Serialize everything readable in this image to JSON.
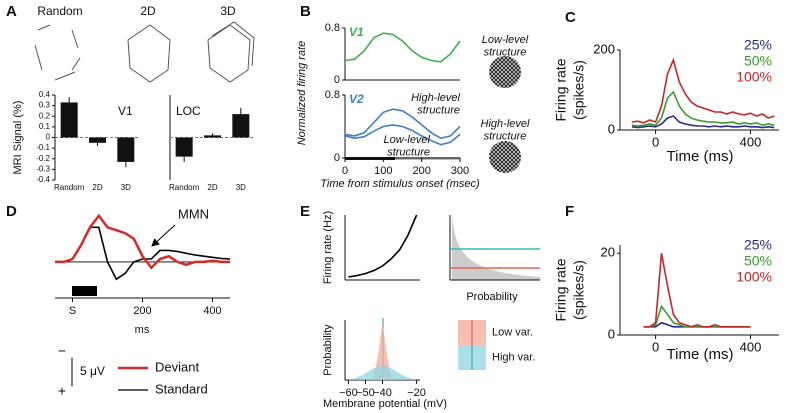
{
  "panel_labels": [
    "A",
    "B",
    "C",
    "D",
    "E",
    "F"
  ],
  "panel_a_stimuli": [
    "Random",
    "2D",
    "3D"
  ],
  "panel_b_images": [
    "Low-level structure",
    "High-level structure"
  ],
  "chart_data": [
    {
      "type": "bar",
      "title": "V1",
      "categories": [
        "Random",
        "2D",
        "3D"
      ],
      "values": [
        0.33,
        -0.05,
        -0.23
      ],
      "errors": [
        0.05,
        0.03,
        0.05
      ],
      "color": "#111111",
      "y_label": "MRI Signal (%)",
      "ylim": [
        -0.4,
        0.4
      ],
      "yticks": [
        -0.4,
        -0.3,
        -0.2,
        -0.1,
        0,
        0.1,
        0.2,
        0.3,
        0.4
      ]
    },
    {
      "type": "bar",
      "title": "LOC",
      "categories": [
        "Random",
        "2D",
        "3D"
      ],
      "values": [
        -0.18,
        0.02,
        0.22
      ],
      "errors": [
        0.05,
        0.02,
        0.06
      ],
      "color": "#111111",
      "ylim": [
        -0.4,
        0.4
      ]
    },
    {
      "type": "line",
      "title": "V1",
      "x": [
        0,
        25,
        50,
        75,
        100,
        125,
        150,
        175,
        200,
        225,
        250,
        275,
        300
      ],
      "series": [
        {
          "color": "#3cb44b",
          "values": [
            0.3,
            0.32,
            0.45,
            0.65,
            0.72,
            0.7,
            0.6,
            0.45,
            0.35,
            0.3,
            0.28,
            0.4,
            0.6
          ]
        }
      ],
      "xlim": [
        0,
        300
      ],
      "ylim": [
        0,
        0.8
      ],
      "yticks": [
        0,
        0.8
      ]
    },
    {
      "type": "line",
      "title": "V2",
      "x": [
        0,
        25,
        50,
        75,
        100,
        125,
        150,
        175,
        200,
        225,
        250,
        275,
        300
      ],
      "series": [
        {
          "name": "High-level structure",
          "color": "#3f7fc4",
          "values": [
            0.3,
            0.28,
            0.32,
            0.45,
            0.58,
            0.62,
            0.6,
            0.52,
            0.42,
            0.32,
            0.25,
            0.28,
            0.4
          ]
        },
        {
          "name": "Low-level structure",
          "color": "#3f7fc4",
          "values": [
            0.28,
            0.25,
            0.27,
            0.34,
            0.4,
            0.42,
            0.4,
            0.35,
            0.28,
            0.22,
            0.17,
            0.2,
            0.3
          ]
        }
      ],
      "xlim": [
        0,
        300
      ],
      "ylim": [
        0,
        0.8
      ],
      "yticks": [
        0,
        0.8
      ],
      "xticks": [
        0,
        100,
        200,
        300
      ],
      "x_label": "Time from stimulus onset (msec)",
      "y_label": "Normalized firing rate"
    },
    {
      "type": "line",
      "x": [
        -100,
        -75,
        -50,
        -25,
        0,
        25,
        50,
        75,
        100,
        125,
        150,
        175,
        200,
        225,
        250,
        275,
        300,
        325,
        350,
        375,
        400,
        425,
        450,
        475,
        500
      ],
      "series": [
        {
          "name": "25%",
          "color": "#2b2b8f",
          "values": [
            8,
            6,
            8,
            10,
            8,
            15,
            30,
            35,
            20,
            15,
            12,
            10,
            10,
            8,
            10,
            8,
            10,
            8,
            8,
            10,
            8,
            8,
            6,
            8,
            6
          ]
        },
        {
          "name": "50%",
          "color": "#3a9c2e",
          "values": [
            12,
            10,
            12,
            15,
            12,
            30,
            80,
            95,
            60,
            40,
            30,
            25,
            22,
            20,
            20,
            18,
            18,
            20,
            15,
            18,
            15,
            18,
            12,
            15,
            12
          ]
        },
        {
          "name": "100%",
          "color": "#c0282d",
          "values": [
            20,
            22,
            18,
            25,
            20,
            60,
            140,
            175,
            120,
            90,
            70,
            60,
            55,
            50,
            45,
            45,
            40,
            45,
            40,
            38,
            42,
            35,
            40,
            30,
            35
          ]
        }
      ],
      "xlim": [
        -150,
        520
      ],
      "ylim": [
        0,
        200
      ],
      "xticks": [
        0,
        400
      ],
      "yticks": [
        0,
        200
      ],
      "x_label": "Time (ms)",
      "y_label": [
        "Firing rate",
        "(spikes/s)"
      ]
    },
    {
      "type": "line",
      "x": [
        -50,
        -25,
        0,
        25,
        50,
        75,
        100,
        125,
        150,
        175,
        200,
        225,
        250,
        275,
        300,
        325,
        350,
        375,
        400,
        425,
        450
      ],
      "series": [
        {
          "name": "Standard",
          "color": "#000000",
          "values": [
            0,
            0,
            0.5,
            3,
            6,
            6,
            0,
            -3,
            -2,
            0,
            0.5,
            0.5,
            2,
            2,
            1.8,
            1.5,
            1.2,
            1,
            0.8,
            0.6,
            0.5
          ]
        },
        {
          "name": "Deviant",
          "color": "#d62a2a",
          "values": [
            0,
            0,
            0.5,
            3,
            6,
            8,
            6,
            5.5,
            5,
            4,
            1,
            -1,
            0.5,
            1,
            0,
            -0.5,
            0,
            0,
            0.2,
            0,
            0
          ]
        }
      ],
      "xlim": [
        -50,
        450
      ],
      "ylim": [
        -4,
        9
      ],
      "xticks": [
        {
          "value": 0,
          "label": "S"
        },
        200,
        400
      ],
      "x_label": "ms",
      "annotation": "MMN",
      "scale_bar": {
        "value": 5,
        "label": "5 μV"
      },
      "polarity": [
        "−",
        "+"
      ]
    },
    {
      "type": "line",
      "x": [
        -60,
        -55,
        -50,
        -45,
        -40,
        -35,
        -30,
        -25,
        -20
      ],
      "series": [
        {
          "color": "#000000",
          "values": [
            0.3,
            0.44,
            0.65,
            0.95,
            1.4,
            2.1,
            3.0,
            4.5,
            6.5
          ]
        }
      ],
      "xlim": [
        -62,
        -18
      ],
      "ylim": [
        0,
        6.5
      ],
      "y_label": "Firing rate (Hz)"
    },
    {
      "type": "hline",
      "lines": [
        {
          "color": "#2bbfbf",
          "value": 3.1
        },
        {
          "color": "#e8605a",
          "value": 1.2
        }
      ],
      "ylim": [
        0,
        6.5
      ],
      "x_label": "Probability"
    },
    {
      "type": "area",
      "x": [
        -60,
        -57.5,
        -55,
        -52.5,
        -50,
        -47.5,
        -45,
        -42.5,
        -40,
        -37.5,
        -35,
        -32.5,
        -30,
        -27.5,
        -25,
        -22.5,
        -20
      ],
      "series": [
        {
          "name": "Low var.",
          "color": "#f4a99a",
          "values": [
            0,
            0,
            0,
            0,
            0,
            0,
            0.044,
            0.458,
            1,
            0.458,
            0.044,
            0,
            0,
            0,
            0,
            0,
            0
          ]
        },
        {
          "name": "High var.",
          "color": "#8fd6e0",
          "values": [
            0.011,
            0.023,
            0.043,
            0.074,
            0.115,
            0.161,
            0.206,
            0.238,
            0.25,
            0.238,
            0.206,
            0.161,
            0.115,
            0.074,
            0.043,
            0.023,
            0.011
          ]
        }
      ],
      "xlim": [
        -62,
        -18
      ],
      "ylim": [
        0,
        1.05
      ],
      "xticks": [
        {
          "value": -60,
          "label": "−60"
        },
        {
          "value": -50,
          "label": "−50"
        },
        {
          "value": -40,
          "label": "−40"
        },
        {
          "value": -20,
          "label": "−20"
        }
      ],
      "x_label": "Membrane potential (mV)",
      "y_label": "Probability"
    },
    {
      "type": "line",
      "x": [
        -50,
        -25,
        0,
        25,
        50,
        75,
        100,
        125,
        150,
        175,
        200,
        225,
        250,
        275,
        300,
        325,
        350,
        375,
        400
      ],
      "series": [
        {
          "name": "25%",
          "color": "#2b2b8f",
          "values": [
            2,
            2,
            2,
            3,
            2.5,
            2,
            2,
            2,
            2,
            2,
            2,
            2,
            2,
            2,
            2,
            2,
            2,
            2,
            2
          ]
        },
        {
          "name": "50%",
          "color": "#3a9c2e",
          "values": [
            2,
            2,
            2.5,
            7,
            5,
            3,
            2.5,
            2,
            2,
            2,
            2,
            2,
            2,
            2,
            2,
            2,
            2,
            2,
            2
          ]
        },
        {
          "name": "100%",
          "color": "#c0282d",
          "values": [
            2,
            2,
            3,
            20,
            12,
            5,
            3,
            2.5,
            2,
            2.5,
            2,
            2,
            2.5,
            2,
            2,
            2,
            2,
            2,
            2
          ]
        }
      ],
      "xlim": [
        -150,
        520
      ],
      "ylim": [
        0,
        22
      ],
      "xticks": [
        0,
        400
      ],
      "yticks": [
        0,
        20
      ],
      "x_label": "Time (ms)",
      "y_label": [
        "Firing rate",
        "(spikes/s)"
      ]
    }
  ]
}
